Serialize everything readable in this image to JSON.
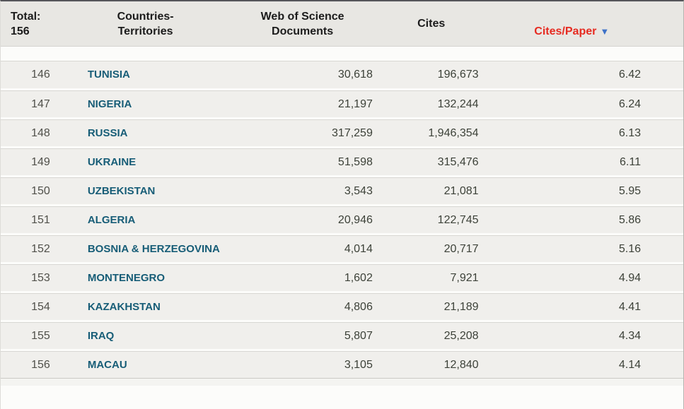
{
  "table": {
    "header": {
      "total": "Total:\n156",
      "countries": "Countries-\nTerritories",
      "wos_docs": "Web of Science\nDocuments",
      "cites": "Cites",
      "cites_paper": "Cites/Paper",
      "sort_icon": "▼",
      "sorted_column": "Cites/Paper",
      "sort_direction": "descending"
    },
    "colors": {
      "sorted_header_red": "#e62b21",
      "sort_arrow_blue": "#3e72c8",
      "country_link_teal": "#175d77",
      "header_bg": "#e8e7e3",
      "row_bg": "#f0efec"
    },
    "rows": [
      {
        "rank": "146",
        "country": "TUNISIA",
        "docs": "30,618",
        "cites": "196,673",
        "cites_per_paper": "6.42"
      },
      {
        "rank": "147",
        "country": "NIGERIA",
        "docs": "21,197",
        "cites": "132,244",
        "cites_per_paper": "6.24"
      },
      {
        "rank": "148",
        "country": "RUSSIA",
        "docs": "317,259",
        "cites": "1,946,354",
        "cites_per_paper": "6.13"
      },
      {
        "rank": "149",
        "country": "UKRAINE",
        "docs": "51,598",
        "cites": "315,476",
        "cites_per_paper": "6.11"
      },
      {
        "rank": "150",
        "country": "UZBEKISTAN",
        "docs": "3,543",
        "cites": "21,081",
        "cites_per_paper": "5.95"
      },
      {
        "rank": "151",
        "country": "ALGERIA",
        "docs": "20,946",
        "cites": "122,745",
        "cites_per_paper": "5.86"
      },
      {
        "rank": "152",
        "country": "BOSNIA & HERZEGOVINA",
        "docs": "4,014",
        "cites": "20,717",
        "cites_per_paper": "5.16"
      },
      {
        "rank": "153",
        "country": "MONTENEGRO",
        "docs": "1,602",
        "cites": "7,921",
        "cites_per_paper": "4.94"
      },
      {
        "rank": "154",
        "country": "KAZAKHSTAN",
        "docs": "4,806",
        "cites": "21,189",
        "cites_per_paper": "4.41"
      },
      {
        "rank": "155",
        "country": "IRAQ",
        "docs": "5,807",
        "cites": "25,208",
        "cites_per_paper": "4.34"
      },
      {
        "rank": "156",
        "country": "MACAU",
        "docs": "3,105",
        "cites": "12,840",
        "cites_per_paper": "4.14"
      }
    ]
  }
}
